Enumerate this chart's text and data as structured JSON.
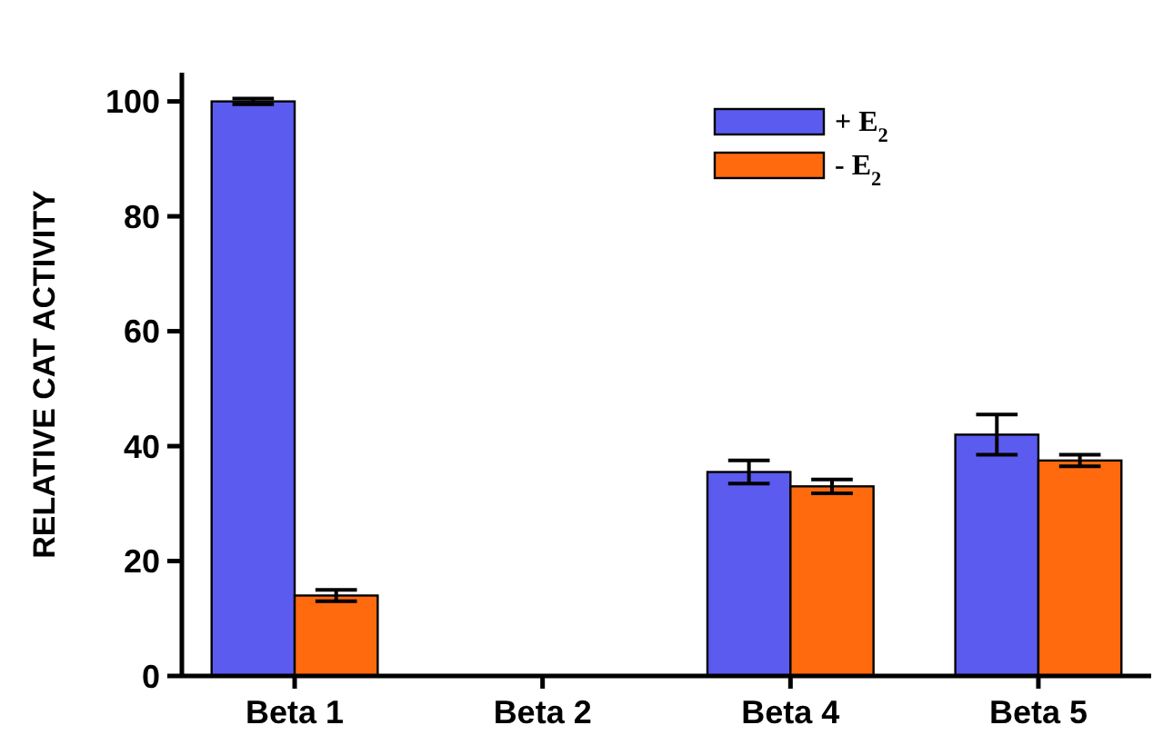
{
  "chart_data": {
    "type": "bar",
    "ylabel": "RELATIVE CAT ACTIVITY",
    "categories": [
      "Beta 1",
      "Beta 2",
      "Beta 4",
      "Beta 5"
    ],
    "series": [
      {
        "name": "+ E$_{2}$",
        "color": "#5b5bf0",
        "values": [
          100,
          null,
          35.5,
          42
        ],
        "errors": [
          0.5,
          null,
          2,
          3.5
        ]
      },
      {
        "name": "-  E$_{2}$",
        "color": "#ff6a0e",
        "values": [
          14,
          null,
          33,
          37.5
        ],
        "errors": [
          1,
          null,
          1.2,
          1
        ]
      }
    ],
    "ylim": [
      0,
      105
    ],
    "yticks": [
      0,
      20,
      40,
      60,
      80,
      100
    ],
    "legend": "top right",
    "grid": false
  }
}
